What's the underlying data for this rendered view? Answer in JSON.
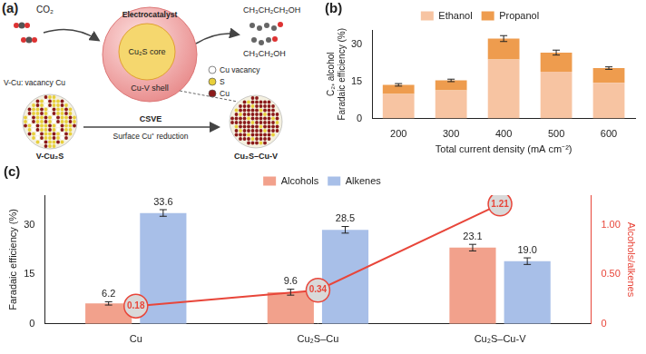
{
  "diagram": {
    "label": "(a)",
    "input": "CO₂",
    "catalyst": "Electrocatalyst",
    "core": "Cu₂S core",
    "shell": "Cu-V shell",
    "products": [
      "CH₃CH₂CH₂OH",
      "CH₃CH₂OH"
    ],
    "note": "V-Cu: vacancy Cu",
    "legend": [
      {
        "label": "Cu vacancy",
        "color": "#ffffff"
      },
      {
        "label": "S",
        "color": "#e8cf3a"
      },
      {
        "label": "Cu",
        "color": "#8b1a1a"
      }
    ],
    "start": "V-Cu₂S",
    "process": "CSVE",
    "process_note": "Surface Cu⁺ reduction",
    "end": "Cu₂S–Cu-V"
  },
  "chart_data": [
    {
      "type": "bar",
      "label": "(b)",
      "stacked": true,
      "grid": false,
      "legend": "top",
      "categories": [
        "200",
        "300",
        "400",
        "500",
        "600"
      ],
      "x_label": "Total current density (mA cm⁻²)",
      "y_label": [
        "C₂₊ alcohol",
        "Faradaic efficiency (%)"
      ],
      "ylim": [
        0,
        36
      ],
      "yticks": [
        0,
        15,
        30
      ],
      "series": [
        {
          "name": "Ethanol",
          "color": "#f7c4a2",
          "values": [
            10.0,
            11.5,
            24.0,
            19.0,
            14.5
          ]
        },
        {
          "name": "Propanol",
          "color": "#ee9c4e",
          "values": [
            3.7,
            4.0,
            8.5,
            7.8,
            6.0
          ],
          "errors": [
            0.5,
            0.5,
            1.2,
            1.0,
            0.5
          ]
        }
      ]
    },
    {
      "type": "bar",
      "label": "(c)",
      "grid": false,
      "legend": "top",
      "data_labels": true,
      "categories": [
        "Cu",
        "Cu₂S–Cu",
        "Cu₂S–Cu-V"
      ],
      "y_label": "Faradaic efficiency (%)",
      "y2_label": "Alcohols/alkenes",
      "ylim": [
        0,
        39
      ],
      "yticks": [
        0,
        15,
        30
      ],
      "y2lim": [
        0,
        1.3
      ],
      "y2ticks": [
        0,
        {
          "value": 0.5,
          "label": "0.50"
        },
        {
          "value": 1.0,
          "label": "1.00"
        }
      ],
      "series": [
        {
          "name": "Alcohols",
          "color": "#f2a18c",
          "values": [
            6.2,
            9.6,
            23.1
          ],
          "value_labels": [
            "6.2",
            "9.6",
            "23.1"
          ],
          "errors": [
            0.5,
            0.9,
            1.0
          ]
        },
        {
          "name": "Alkenes",
          "color": "#a8bfe8",
          "values": [
            33.6,
            28.5,
            19.0
          ],
          "value_labels": [
            "33.6",
            "28.5",
            "19.0"
          ],
          "errors": [
            1.0,
            1.0,
            1.0
          ]
        },
        {
          "name": "Alcohols/alkenes",
          "type": "line",
          "axis": "y2",
          "color": "#e8463a",
          "marker": "circle",
          "values": [
            0.18,
            0.34,
            1.21
          ]
        }
      ]
    }
  ]
}
